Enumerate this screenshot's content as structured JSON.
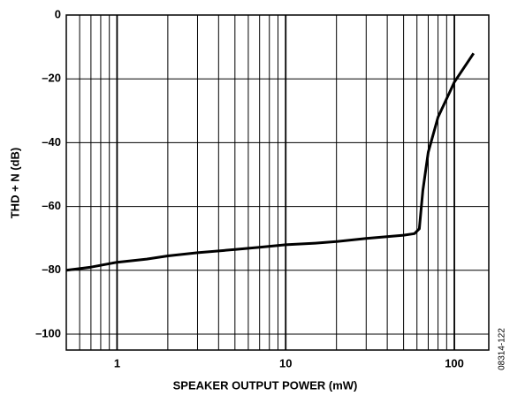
{
  "chart_data": {
    "type": "line",
    "x_label": "SPEAKER OUTPUT POWER (mW)",
    "y_label": "THD + N (dB)",
    "figure_id": "08314-122",
    "xscale": "log",
    "xlim": [
      0.5,
      160
    ],
    "xticks": [
      1,
      10,
      100
    ],
    "minor_xticks": [
      0.6,
      0.7,
      0.8,
      0.9,
      2,
      3,
      4,
      5,
      6,
      7,
      8,
      9,
      20,
      30,
      40,
      50,
      60,
      70,
      80,
      90
    ],
    "ylim": [
      -105,
      0
    ],
    "yticks": [
      0,
      {
        "value": -20,
        "label": "–20"
      },
      {
        "value": -40,
        "label": "–40"
      },
      {
        "value": -60,
        "label": "–60"
      },
      {
        "value": -80,
        "label": "–80"
      },
      {
        "value": -100,
        "label": "–100"
      }
    ],
    "grid": true,
    "series": [
      {
        "color": "#000000",
        "x": [
          0.5,
          0.7,
          1,
          1.5,
          2,
          3,
          5,
          7,
          10,
          15,
          20,
          30,
          50,
          58,
          62,
          65,
          70,
          80,
          100,
          130
        ],
        "values": [
          -80,
          -79,
          -77.5,
          -76.5,
          -75.5,
          -74.5,
          -73.5,
          -72.8,
          -72,
          -71.5,
          -71,
          -70,
          -69,
          -68.5,
          -67,
          -55,
          -43,
          -32,
          -21,
          -12
        ]
      }
    ]
  }
}
